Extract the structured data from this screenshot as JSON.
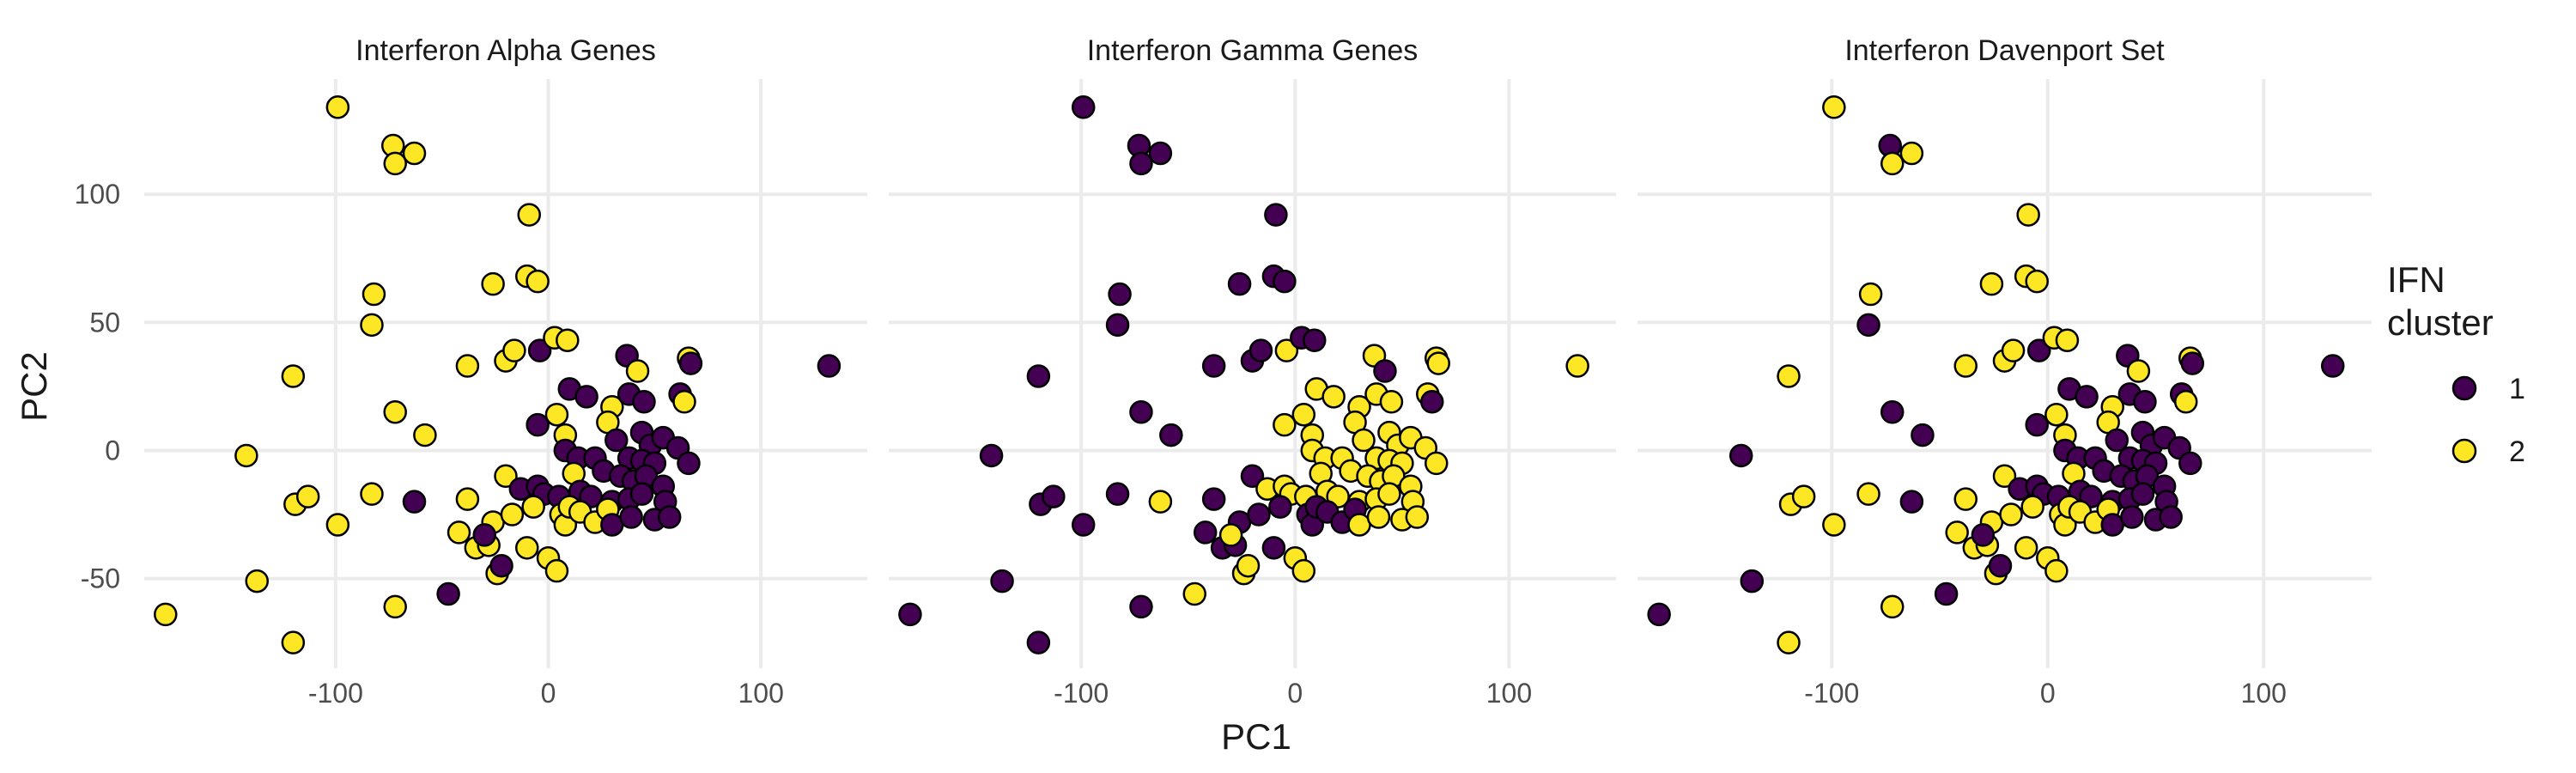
{
  "chart_data": {
    "type": "scatter",
    "xlabel": "PC1",
    "ylabel": "PC2",
    "xlim": [
      -190,
      150
    ],
    "ylim": [
      -85,
      145
    ],
    "x_ticks": [
      -100,
      0,
      100
    ],
    "y_ticks": [
      -50,
      0,
      50,
      100
    ],
    "grid": true,
    "legend": {
      "title_lines": [
        "IFN",
        "cluster"
      ],
      "position": "right",
      "items": [
        {
          "label": "1",
          "color": "#440154"
        },
        {
          "label": "2",
          "color": "#FDE725"
        }
      ]
    },
    "points": [
      {
        "x": -180,
        "y": -64,
        "g": [
          2,
          1,
          1
        ]
      },
      {
        "x": -142,
        "y": -2,
        "g": [
          2,
          1,
          1
        ]
      },
      {
        "x": -137,
        "y": -51,
        "g": [
          2,
          1,
          1
        ]
      },
      {
        "x": -120,
        "y": 29,
        "g": [
          2,
          1,
          2
        ]
      },
      {
        "x": -120,
        "y": -75,
        "g": [
          2,
          1,
          2
        ]
      },
      {
        "x": -119,
        "y": -21,
        "g": [
          2,
          1,
          2
        ]
      },
      {
        "x": -113,
        "y": -18,
        "g": [
          2,
          1,
          2
        ]
      },
      {
        "x": -99,
        "y": -29,
        "g": [
          2,
          1,
          2
        ]
      },
      {
        "x": -99,
        "y": 134,
        "g": [
          2,
          1,
          2
        ]
      },
      {
        "x": -82,
        "y": 61,
        "g": [
          2,
          1,
          2
        ]
      },
      {
        "x": -83,
        "y": 49,
        "g": [
          2,
          1,
          1
        ]
      },
      {
        "x": -83,
        "y": -17,
        "g": [
          2,
          1,
          2
        ]
      },
      {
        "x": -73,
        "y": 119,
        "g": [
          2,
          1,
          1
        ]
      },
      {
        "x": -72,
        "y": 112,
        "g": [
          2,
          1,
          2
        ]
      },
      {
        "x": -63,
        "y": 116,
        "g": [
          2,
          1,
          2
        ]
      },
      {
        "x": -72,
        "y": 15,
        "g": [
          2,
          1,
          1
        ]
      },
      {
        "x": -72,
        "y": -61,
        "g": [
          2,
          1,
          2
        ]
      },
      {
        "x": -58,
        "y": 6,
        "g": [
          2,
          1,
          1
        ]
      },
      {
        "x": -63,
        "y": -20,
        "g": [
          1,
          2,
          1
        ]
      },
      {
        "x": -47,
        "y": -56,
        "g": [
          1,
          2,
          1
        ]
      },
      {
        "x": -38,
        "y": 33,
        "g": [
          2,
          1,
          2
        ]
      },
      {
        "x": -38,
        "y": -19,
        "g": [
          2,
          1,
          2
        ]
      },
      {
        "x": -34,
        "y": -38,
        "g": [
          2,
          1,
          2
        ]
      },
      {
        "x": -28,
        "y": -37,
        "g": [
          2,
          1,
          2
        ]
      },
      {
        "x": -26,
        "y": 65,
        "g": [
          2,
          1,
          2
        ]
      },
      {
        "x": -24,
        "y": -48,
        "g": [
          2,
          2,
          2
        ]
      },
      {
        "x": -20,
        "y": 35,
        "g": [
          2,
          1,
          2
        ]
      },
      {
        "x": -16,
        "y": 39,
        "g": [
          2,
          1,
          2
        ]
      },
      {
        "x": -9,
        "y": 92,
        "g": [
          2,
          1,
          2
        ]
      },
      {
        "x": -10,
        "y": 68,
        "g": [
          2,
          1,
          2
        ]
      },
      {
        "x": -5,
        "y": 66,
        "g": [
          2,
          1,
          2
        ]
      },
      {
        "x": -4,
        "y": 39,
        "g": [
          1,
          2,
          1
        ]
      },
      {
        "x": 3,
        "y": 44,
        "g": [
          2,
          1,
          2
        ]
      },
      {
        "x": 9,
        "y": 43,
        "g": [
          2,
          1,
          2
        ]
      },
      {
        "x": 10,
        "y": 24,
        "g": [
          1,
          2,
          1
        ]
      },
      {
        "x": 18,
        "y": 21,
        "g": [
          1,
          2,
          1
        ]
      },
      {
        "x": 4,
        "y": 14,
        "g": [
          2,
          2,
          2
        ]
      },
      {
        "x": -5,
        "y": 10,
        "g": [
          1,
          2,
          1
        ]
      },
      {
        "x": 8,
        "y": 6,
        "g": [
          2,
          2,
          2
        ]
      },
      {
        "x": 30,
        "y": 17,
        "g": [
          2,
          2,
          2
        ]
      },
      {
        "x": 37,
        "y": 37,
        "g": [
          1,
          2,
          1
        ]
      },
      {
        "x": 42,
        "y": 31,
        "g": [
          2,
          1,
          2
        ]
      },
      {
        "x": 38,
        "y": 22,
        "g": [
          1,
          2,
          1
        ]
      },
      {
        "x": 45,
        "y": 19,
        "g": [
          1,
          2,
          1
        ]
      },
      {
        "x": 62,
        "y": 22,
        "g": [
          1,
          2,
          1
        ]
      },
      {
        "x": 64,
        "y": 19,
        "g": [
          2,
          1,
          2
        ]
      },
      {
        "x": 66,
        "y": 36,
        "g": [
          2,
          2,
          2
        ]
      },
      {
        "x": 67,
        "y": 34,
        "g": [
          1,
          2,
          1
        ]
      },
      {
        "x": 28,
        "y": 11,
        "g": [
          2,
          2,
          2
        ]
      },
      {
        "x": 32,
        "y": 4,
        "g": [
          1,
          2,
          1
        ]
      },
      {
        "x": 44,
        "y": 7,
        "g": [
          1,
          2,
          1
        ]
      },
      {
        "x": 48,
        "y": 2,
        "g": [
          1,
          2,
          1
        ]
      },
      {
        "x": 54,
        "y": 5,
        "g": [
          1,
          2,
          1
        ]
      },
      {
        "x": 61,
        "y": 1,
        "g": [
          1,
          2,
          1
        ]
      },
      {
        "x": 66,
        "y": -5,
        "g": [
          1,
          2,
          1
        ]
      },
      {
        "x": 8,
        "y": 0,
        "g": [
          1,
          2,
          1
        ]
      },
      {
        "x": 14,
        "y": -3,
        "g": [
          1,
          2,
          1
        ]
      },
      {
        "x": 22,
        "y": -3,
        "g": [
          1,
          2,
          1
        ]
      },
      {
        "x": 38,
        "y": -3,
        "g": [
          1,
          2,
          1
        ]
      },
      {
        "x": 44,
        "y": -4,
        "g": [
          1,
          2,
          1
        ]
      },
      {
        "x": 50,
        "y": -5,
        "g": [
          1,
          2,
          1
        ]
      },
      {
        "x": 12,
        "y": -9,
        "g": [
          2,
          2,
          2
        ]
      },
      {
        "x": 26,
        "y": -8,
        "g": [
          1,
          2,
          1
        ]
      },
      {
        "x": 34,
        "y": -10,
        "g": [
          1,
          2,
          1
        ]
      },
      {
        "x": 40,
        "y": -12,
        "g": [
          1,
          2,
          1
        ]
      },
      {
        "x": 46,
        "y": -10,
        "g": [
          1,
          2,
          1
        ]
      },
      {
        "x": 54,
        "y": -14,
        "g": [
          1,
          2,
          1
        ]
      },
      {
        "x": -20,
        "y": -10,
        "g": [
          2,
          1,
          2
        ]
      },
      {
        "x": -13,
        "y": -15,
        "g": [
          1,
          2,
          1
        ]
      },
      {
        "x": -5,
        "y": -14,
        "g": [
          1,
          2,
          1
        ]
      },
      {
        "x": -2,
        "y": -17,
        "g": [
          1,
          2,
          1
        ]
      },
      {
        "x": 5,
        "y": -18,
        "g": [
          1,
          2,
          1
        ]
      },
      {
        "x": 15,
        "y": -16,
        "g": [
          1,
          2,
          1
        ]
      },
      {
        "x": 20,
        "y": -18,
        "g": [
          1,
          2,
          1
        ]
      },
      {
        "x": 30,
        "y": -20,
        "g": [
          1,
          2,
          1
        ]
      },
      {
        "x": 38,
        "y": -19,
        "g": [
          1,
          2,
          1
        ]
      },
      {
        "x": 44,
        "y": -17,
        "g": [
          1,
          2,
          1
        ]
      },
      {
        "x": 55,
        "y": -20,
        "g": [
          1,
          2,
          1
        ]
      },
      {
        "x": -26,
        "y": -28,
        "g": [
          2,
          1,
          2
        ]
      },
      {
        "x": -17,
        "y": -25,
        "g": [
          2,
          1,
          2
        ]
      },
      {
        "x": -7,
        "y": -22,
        "g": [
          2,
          1,
          2
        ]
      },
      {
        "x": 6,
        "y": -25,
        "g": [
          2,
          1,
          2
        ]
      },
      {
        "x": 8,
        "y": -29,
        "g": [
          2,
          1,
          2
        ]
      },
      {
        "x": 10,
        "y": -22,
        "g": [
          2,
          1,
          2
        ]
      },
      {
        "x": 15,
        "y": -24,
        "g": [
          2,
          1,
          2
        ]
      },
      {
        "x": 22,
        "y": -28,
        "g": [
          2,
          1,
          2
        ]
      },
      {
        "x": 28,
        "y": -23,
        "g": [
          2,
          1,
          2
        ]
      },
      {
        "x": 30,
        "y": -29,
        "g": [
          1,
          2,
          1
        ]
      },
      {
        "x": 39,
        "y": -26,
        "g": [
          1,
          2,
          1
        ]
      },
      {
        "x": 50,
        "y": -27,
        "g": [
          1,
          2,
          1
        ]
      },
      {
        "x": 57,
        "y": -26,
        "g": [
          1,
          2,
          1
        ]
      },
      {
        "x": -22,
        "y": -45,
        "g": [
          1,
          2,
          1
        ]
      },
      {
        "x": -30,
        "y": -33,
        "g": [
          1,
          2,
          1
        ]
      },
      {
        "x": -42,
        "y": -32,
        "g": [
          2,
          1,
          2
        ]
      },
      {
        "x": -10,
        "y": -38,
        "g": [
          2,
          1,
          2
        ]
      },
      {
        "x": 0,
        "y": -42,
        "g": [
          2,
          2,
          2
        ]
      },
      {
        "x": 4,
        "y": -47,
        "g": [
          2,
          2,
          2
        ]
      },
      {
        "x": 132,
        "y": 33,
        "g": [
          1,
          2,
          1
        ]
      }
    ],
    "panels": [
      {
        "title": "Interferon Alpha Genes"
      },
      {
        "title": "Interferon Gamma Genes"
      },
      {
        "title": "Interferon Davenport Set"
      }
    ]
  }
}
